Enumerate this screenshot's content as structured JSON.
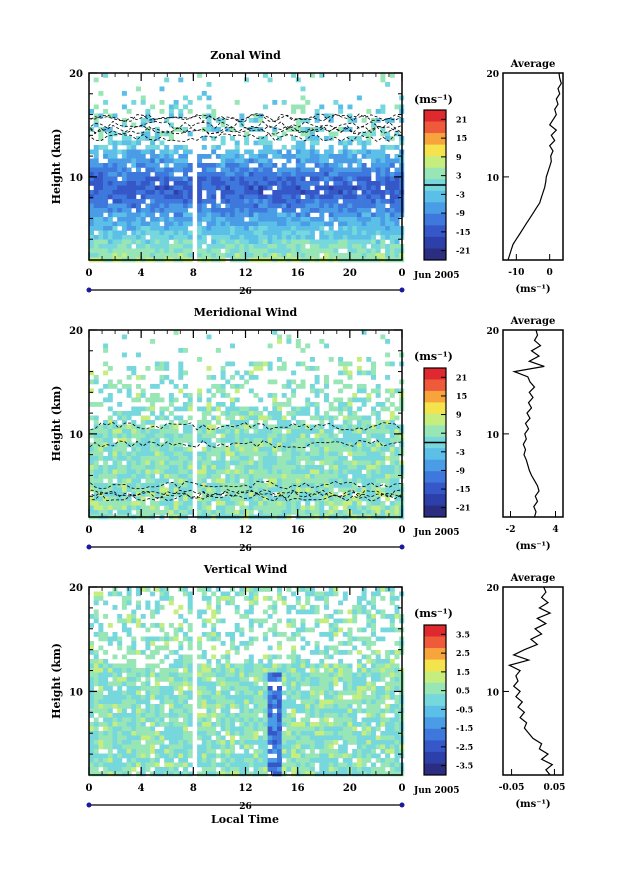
{
  "palette": [
    "#2a2d80",
    "#2d3fa8",
    "#3557c8",
    "#3e78dc",
    "#4a9ce6",
    "#5bbfe8",
    "#76d7dd",
    "#98e6b6",
    "#c6ee7e",
    "#f4e34d",
    "#f7a43c",
    "#ef5a3a",
    "#e0292e"
  ],
  "x_axis": {
    "ticks": [
      "0",
      "4",
      "8",
      "12",
      "16",
      "20",
      "0"
    ],
    "day_label": "26",
    "date_label": "Jun 2005",
    "title": "Local Time"
  },
  "chart_data": [
    {
      "type": "heatmap",
      "title": "Zonal Wind",
      "ylabel": "Height (km)",
      "xlim": [
        0,
        24
      ],
      "ylim": [
        2,
        20
      ],
      "y_ticks": [
        "10",
        "20"
      ],
      "colorbar": {
        "unit": "(ms⁻¹)",
        "ticks": [
          "21",
          "15",
          "9",
          "3",
          "-3",
          "-9",
          "-15",
          "-21"
        ],
        "range": [
          -24,
          24
        ]
      },
      "profile": {
        "title": "Average",
        "xlabel": "(ms⁻¹)",
        "x_ticks": [
          "-10",
          "0"
        ],
        "xlim": [
          -14,
          4
        ],
        "y_ticks": [
          "10",
          "20"
        ],
        "ylim": [
          2,
          20
        ],
        "points": [
          [
            -12.5,
            2
          ],
          [
            -12,
            2.5
          ],
          [
            -11.5,
            3
          ],
          [
            -11,
            3.5
          ],
          [
            -10,
            4
          ],
          [
            -9,
            4.5
          ],
          [
            -8,
            5
          ],
          [
            -7,
            5.5
          ],
          [
            -6,
            6
          ],
          [
            -5,
            6.5
          ],
          [
            -4,
            7
          ],
          [
            -3,
            7.5
          ],
          [
            -2.5,
            8
          ],
          [
            -2,
            8.5
          ],
          [
            -1.5,
            9
          ],
          [
            -1.2,
            9.5
          ],
          [
            -1,
            10
          ],
          [
            -0.5,
            10.5
          ],
          [
            0,
            11
          ],
          [
            0.5,
            11.5
          ],
          [
            0.3,
            12
          ],
          [
            1,
            12.5
          ],
          [
            0,
            13
          ],
          [
            1.5,
            13.5
          ],
          [
            0.5,
            14
          ],
          [
            2,
            14.5
          ],
          [
            0,
            15
          ],
          [
            1,
            15.5
          ],
          [
            2,
            16
          ],
          [
            1.5,
            16.5
          ],
          [
            2.5,
            17
          ],
          [
            2,
            17.5
          ],
          [
            3,
            18
          ],
          [
            2.5,
            18.5
          ],
          [
            3.5,
            19
          ],
          [
            3,
            19.5
          ],
          [
            2.8,
            20
          ]
        ]
      }
    },
    {
      "type": "heatmap",
      "title": "Meridional Wind",
      "ylabel": "Height (km)",
      "xlim": [
        0,
        24
      ],
      "ylim": [
        2,
        20
      ],
      "y_ticks": [
        "10",
        "20"
      ],
      "colorbar": {
        "unit": "(ms⁻¹)",
        "ticks": [
          "21",
          "15",
          "9",
          "3",
          "-3",
          "-9",
          "-15",
          "-21"
        ],
        "range": [
          -24,
          24
        ]
      },
      "profile": {
        "title": "Average",
        "xlabel": "(ms⁻¹)",
        "x_ticks": [
          "-2",
          "4"
        ],
        "xlim": [
          -3,
          5
        ],
        "y_ticks": [
          "10",
          "20"
        ],
        "ylim": [
          2,
          20
        ],
        "points": [
          [
            1.2,
            2
          ],
          [
            1.4,
            2.5
          ],
          [
            1.1,
            3
          ],
          [
            1.6,
            3.5
          ],
          [
            1.3,
            4
          ],
          [
            1.8,
            4.5
          ],
          [
            1.6,
            5
          ],
          [
            1.2,
            5.5
          ],
          [
            0.8,
            6
          ],
          [
            0.5,
            6.5
          ],
          [
            0.3,
            7
          ],
          [
            0.1,
            7.5
          ],
          [
            -0.2,
            8
          ],
          [
            0,
            8.5
          ],
          [
            -0.3,
            9
          ],
          [
            0.1,
            9.5
          ],
          [
            -0.1,
            10
          ],
          [
            0.4,
            10.5
          ],
          [
            0,
            11
          ],
          [
            0.6,
            11.5
          ],
          [
            0.2,
            12
          ],
          [
            0.8,
            12.5
          ],
          [
            0.4,
            13
          ],
          [
            1,
            13.5
          ],
          [
            0.5,
            14
          ],
          [
            1.2,
            14.5
          ],
          [
            0.6,
            15
          ],
          [
            0.3,
            15.5
          ],
          [
            -1.5,
            16
          ],
          [
            2.5,
            16.5
          ],
          [
            0.5,
            17
          ],
          [
            1.8,
            17.5
          ],
          [
            0.8,
            18
          ],
          [
            2,
            18.5
          ],
          [
            1.2,
            19
          ],
          [
            1.6,
            19.5
          ],
          [
            1.4,
            20
          ]
        ]
      }
    },
    {
      "type": "heatmap",
      "title": "Vertical Wind",
      "ylabel": "Height (km)",
      "xlim": [
        0,
        24
      ],
      "ylim": [
        2,
        20
      ],
      "y_ticks": [
        "10",
        "20"
      ],
      "colorbar": {
        "unit": "(ms⁻¹)",
        "ticks": [
          "3.5",
          "2.5",
          "1.5",
          "0.5",
          "-0.5",
          "-1.5",
          "-2.5",
          "-3.5"
        ],
        "range": [
          -4,
          4
        ]
      },
      "profile": {
        "title": "Average",
        "xlabel": "(ms⁻¹)",
        "x_ticks": [
          "-0.05",
          "0.05"
        ],
        "xlim": [
          -0.07,
          0.07
        ],
        "y_ticks": [
          "10",
          "20"
        ],
        "ylim": [
          2,
          20
        ],
        "points": [
          [
            0.04,
            2
          ],
          [
            0.03,
            2.5
          ],
          [
            0.045,
            3
          ],
          [
            0.02,
            3.5
          ],
          [
            0.035,
            4
          ],
          [
            0.015,
            4.5
          ],
          [
            0.02,
            5
          ],
          [
            0.0,
            5.5
          ],
          [
            -0.01,
            6
          ],
          [
            -0.02,
            6.5
          ],
          [
            -0.015,
            7
          ],
          [
            -0.03,
            7.5
          ],
          [
            -0.02,
            8
          ],
          [
            -0.035,
            8.5
          ],
          [
            -0.025,
            9
          ],
          [
            -0.04,
            9.5
          ],
          [
            -0.03,
            10
          ],
          [
            -0.045,
            10.5
          ],
          [
            -0.035,
            11
          ],
          [
            -0.04,
            11.5
          ],
          [
            -0.03,
            12
          ],
          [
            -0.055,
            12.5
          ],
          [
            -0.01,
            13
          ],
          [
            -0.045,
            13.5
          ],
          [
            -0.02,
            14
          ],
          [
            0.01,
            14.5
          ],
          [
            -0.005,
            15
          ],
          [
            0.02,
            15.5
          ],
          [
            0.005,
            16
          ],
          [
            0.03,
            16.5
          ],
          [
            0.01,
            17
          ],
          [
            0.04,
            17.5
          ],
          [
            0.015,
            18
          ],
          [
            0.035,
            18.5
          ],
          [
            0.02,
            19
          ],
          [
            0.03,
            19.5
          ],
          [
            0.025,
            20
          ]
        ]
      }
    }
  ]
}
